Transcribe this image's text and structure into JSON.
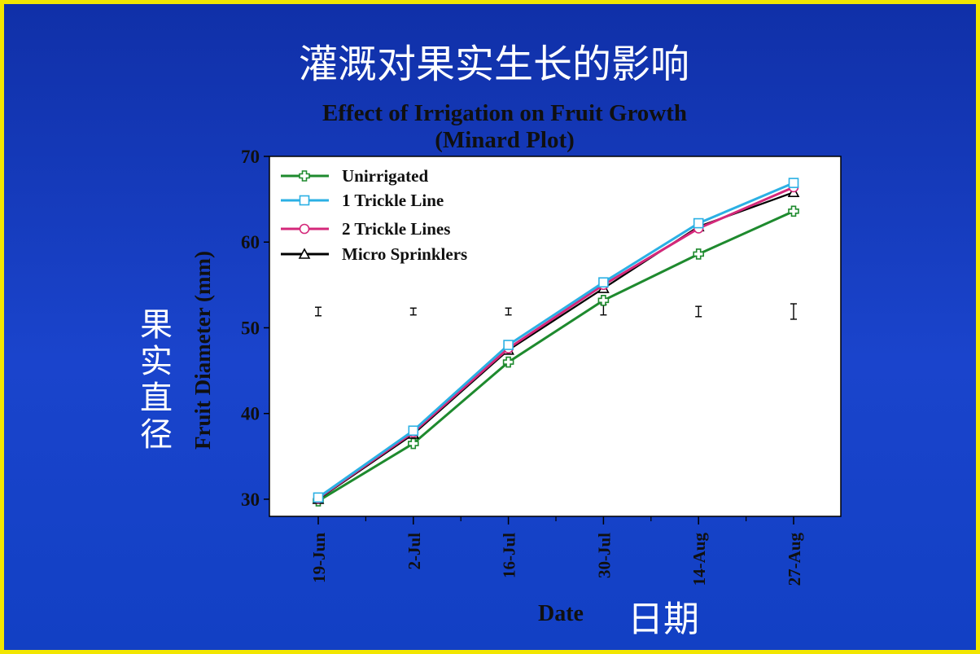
{
  "slide": {
    "title_cn": "灌溉对果实生长的影响",
    "ylabel_cn": "果实直径",
    "xlabel_cn": "日期"
  },
  "chart_data": {
    "type": "line",
    "title": "Effect of Irrigation on Fruit Growth",
    "subtitle": "(Minard Plot)",
    "xlabel": "Date",
    "ylabel": "Fruit Diameter (mm)",
    "categories": [
      "19-Jun",
      "2-Jul",
      "16-Jul",
      "30-Jul",
      "14-Aug",
      "27-Aug"
    ],
    "ylim": [
      28,
      70
    ],
    "yticks": [
      30,
      40,
      50,
      60,
      70
    ],
    "grid": false,
    "legend_position": "top-left",
    "series": [
      {
        "name": "Unirrigated",
        "color": "#1e8a2e",
        "marker": "plus",
        "values": [
          29.8,
          36.5,
          46.0,
          53.2,
          58.6,
          63.6
        ]
      },
      {
        "name": "1 Trickle Line",
        "color": "#2bb0e4",
        "marker": "square",
        "values": [
          30.2,
          38.0,
          48.0,
          55.3,
          62.2,
          66.9
        ]
      },
      {
        "name": "2 Trickle Lines",
        "color": "#d4287a",
        "marker": "circle",
        "values": [
          30.1,
          37.8,
          47.6,
          55.0,
          61.6,
          66.4
        ]
      },
      {
        "name": " Micro Sprinklers",
        "color": "#000000",
        "marker": "triangle",
        "values": [
          30.0,
          37.6,
          47.4,
          54.6,
          61.8,
          65.8
        ]
      }
    ],
    "error_bars": {
      "center": [
        51.9,
        51.9,
        51.9,
        52.1,
        51.9,
        51.9
      ],
      "half_width": [
        0.5,
        0.4,
        0.4,
        0.6,
        0.6,
        0.9
      ]
    }
  }
}
